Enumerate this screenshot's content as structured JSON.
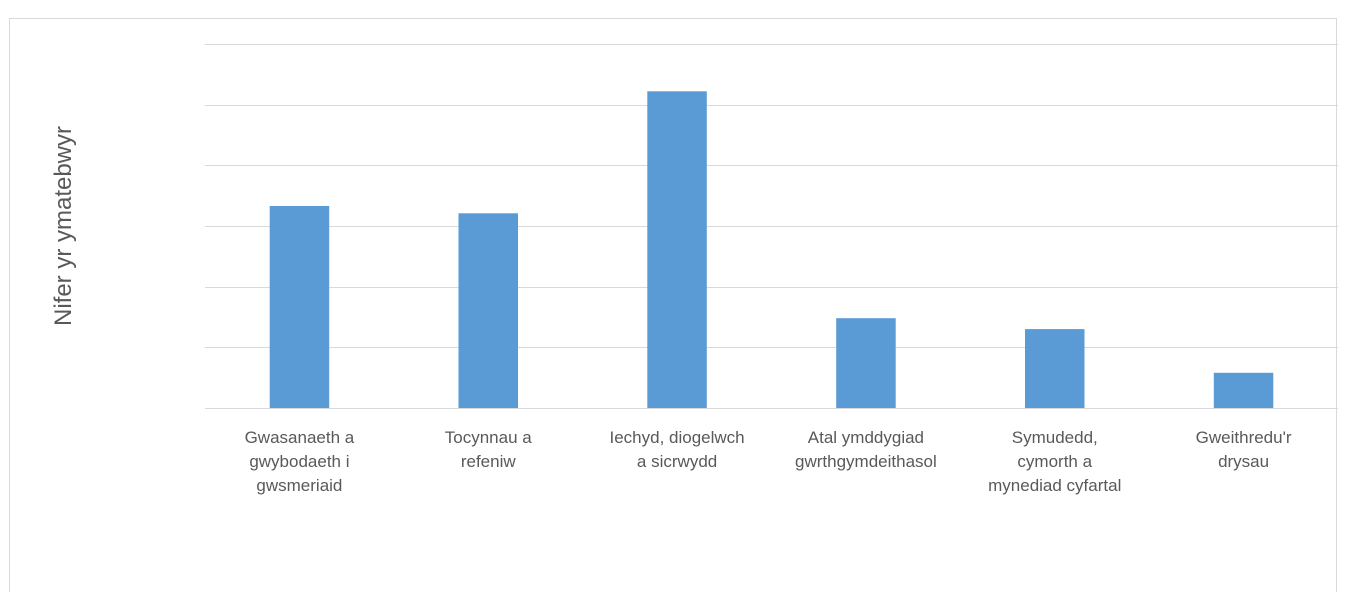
{
  "header_text": "",
  "chart_data": {
    "type": "bar",
    "title": "",
    "xlabel": "",
    "ylabel": "Nifer yr ymatebwyr",
    "categories": [
      [
        "Gwasanaeth a",
        "gwybodaeth i",
        "gwsmeriaid"
      ],
      [
        "Tocynnau a",
        "refeniw"
      ],
      [
        "Iechyd, diogelwch",
        "a sicrwydd"
      ],
      [
        "Atal ymddygiad",
        "gwrthgymdeithasol"
      ],
      [
        "Symudedd,",
        "cymorth a",
        "mynediad cyfartal"
      ],
      [
        "Gweithredu'r",
        "drysau"
      ]
    ],
    "values": [
      33.3,
      32.1,
      52.2,
      14.8,
      13.0,
      5.8
    ],
    "ylim": [
      0,
      60
    ],
    "ygrid_step": 10,
    "y_tick_labels_shown": false,
    "grid": true,
    "legend": "none",
    "colors": {
      "bar": "#5B9BD5",
      "grid": "#D9D9D9",
      "axis": "#D9D9D9",
      "text": "#595959",
      "border": "#D9D9D9"
    }
  }
}
